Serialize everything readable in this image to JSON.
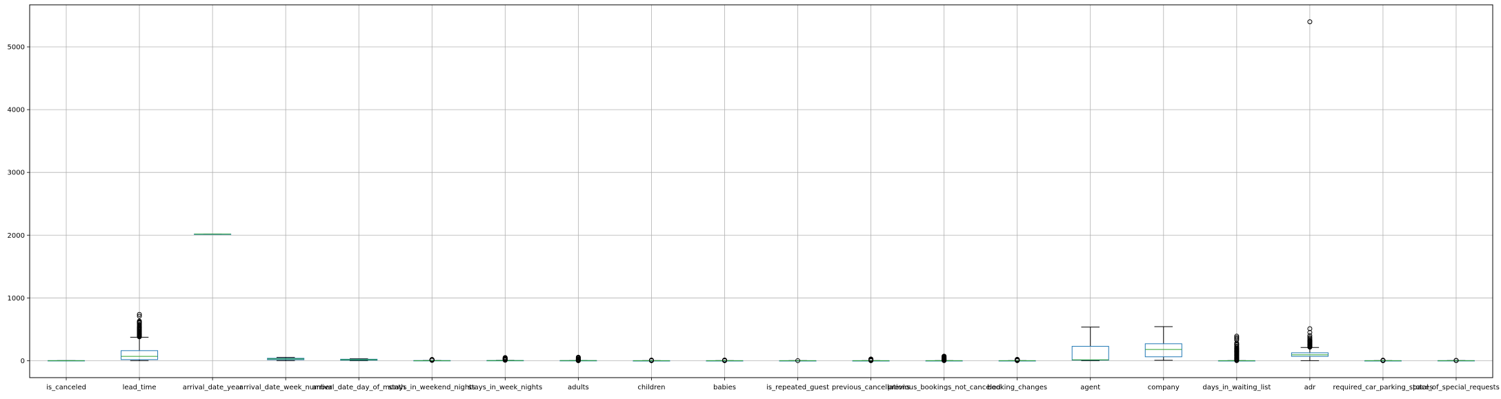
{
  "chart_data": {
    "type": "box",
    "title": "",
    "xlabel": "",
    "ylabel": "",
    "ylim": [
      -270,
      5670
    ],
    "yticks": [
      0,
      1000,
      2000,
      3000,
      4000,
      5000
    ],
    "grid": true,
    "colors": {
      "box": "#1f77b4",
      "median": "#2ca02c",
      "whisker": "#000000",
      "grid": "#b0b0b0"
    },
    "series": [
      {
        "label": "is_canceled",
        "q1": 0,
        "median": 0,
        "q3": 1,
        "whislo": 0,
        "whishi": 1,
        "fliers": []
      },
      {
        "label": "lead_time",
        "q1": 18,
        "median": 69,
        "q3": 160,
        "whislo": 0,
        "whishi": 373,
        "fliers": [
          380,
          390,
          400,
          410,
          420,
          430,
          440,
          450,
          460,
          470,
          480,
          490,
          500,
          510,
          520,
          530,
          540,
          560,
          580,
          600,
          610,
          620,
          630,
          709,
          737
        ]
      },
      {
        "label": "arrival_date_year",
        "q1": 2016,
        "median": 2016,
        "q3": 2017,
        "whislo": 2015,
        "whishi": 2017,
        "fliers": []
      },
      {
        "label": "arrival_date_week_number",
        "q1": 16,
        "median": 28,
        "q3": 38,
        "whislo": 1,
        "whishi": 53,
        "fliers": []
      },
      {
        "label": "arrival_date_day_of_month",
        "q1": 8,
        "median": 16,
        "q3": 23,
        "whislo": 1,
        "whishi": 31,
        "fliers": []
      },
      {
        "label": "stays_in_weekend_nights",
        "q1": 0,
        "median": 1,
        "q3": 2,
        "whislo": 0,
        "whishi": 5,
        "fliers": [
          6,
          7,
          8,
          9,
          10,
          12,
          13,
          14,
          16,
          18,
          19
        ]
      },
      {
        "label": "stays_in_week_nights",
        "q1": 1,
        "median": 2,
        "q3": 3,
        "whislo": 0,
        "whishi": 6,
        "fliers": [
          7,
          10,
          15,
          20,
          25,
          30,
          32,
          34,
          35,
          40,
          42,
          50
        ]
      },
      {
        "label": "adults",
        "q1": 2,
        "median": 2,
        "q3": 2,
        "whislo": 2,
        "whishi": 2,
        "fliers": [
          0,
          1,
          3,
          4,
          5,
          6,
          10,
          20,
          26,
          27,
          40,
          50,
          55
        ]
      },
      {
        "label": "children",
        "q1": 0,
        "median": 0,
        "q3": 0,
        "whislo": 0,
        "whishi": 0,
        "fliers": [
          1,
          2,
          3,
          10
        ]
      },
      {
        "label": "babies",
        "q1": 0,
        "median": 0,
        "q3": 0,
        "whislo": 0,
        "whishi": 0,
        "fliers": [
          1,
          2,
          9,
          10
        ]
      },
      {
        "label": "is_repeated_guest",
        "q1": 0,
        "median": 0,
        "q3": 0,
        "whislo": 0,
        "whishi": 0,
        "fliers": [
          1
        ]
      },
      {
        "label": "previous_cancellations",
        "q1": 0,
        "median": 0,
        "q3": 0,
        "whislo": 0,
        "whishi": 0,
        "fliers": [
          1,
          2,
          3,
          5,
          11,
          13,
          14,
          19,
          21,
          24,
          25,
          26
        ]
      },
      {
        "label": "previous_bookings_not_canceled",
        "q1": 0,
        "median": 0,
        "q3": 0,
        "whislo": 0,
        "whishi": 0,
        "fliers": [
          1,
          5,
          10,
          15,
          20,
          25,
          30,
          35,
          40,
          45,
          50,
          55,
          60,
          65,
          70,
          72
        ]
      },
      {
        "label": "booking_changes",
        "q1": 0,
        "median": 0,
        "q3": 0,
        "whislo": 0,
        "whishi": 0,
        "fliers": [
          1,
          3,
          5,
          8,
          10,
          13,
          15,
          16,
          17,
          18,
          20,
          21
        ]
      },
      {
        "label": "agent",
        "q1": 9,
        "median": 14,
        "q3": 229,
        "whislo": 1,
        "whishi": 535,
        "fliers": []
      },
      {
        "label": "company",
        "q1": 62,
        "median": 179,
        "q3": 270,
        "whislo": 6,
        "whishi": 543,
        "fliers": []
      },
      {
        "label": "days_in_waiting_list",
        "q1": 0,
        "median": 0,
        "q3": 0,
        "whislo": 0,
        "whishi": 0,
        "fliers": [
          1,
          10,
          20,
          30,
          40,
          50,
          60,
          70,
          80,
          90,
          100,
          110,
          120,
          130,
          140,
          150,
          160,
          170,
          180,
          190,
          200,
          215,
          230,
          250,
          260,
          280,
          330,
          350,
          370,
          391
        ]
      },
      {
        "label": "adr",
        "q1": 69,
        "median": 94,
        "q3": 126,
        "whislo": 0,
        "whishi": 211,
        "fliers": [
          215,
          220,
          230,
          240,
          250,
          260,
          270,
          280,
          290,
          300,
          310,
          320,
          330,
          350,
          370,
          400,
          450,
          510,
          5400
        ]
      },
      {
        "label": "required_car_parking_spaces",
        "q1": 0,
        "median": 0,
        "q3": 0,
        "whislo": 0,
        "whishi": 0,
        "fliers": [
          1,
          2,
          3,
          8
        ]
      },
      {
        "label": "total_of_special_requests",
        "q1": 0,
        "median": 0,
        "q3": 1,
        "whislo": 0,
        "whishi": 2,
        "fliers": [
          3,
          4,
          5
        ]
      }
    ]
  }
}
